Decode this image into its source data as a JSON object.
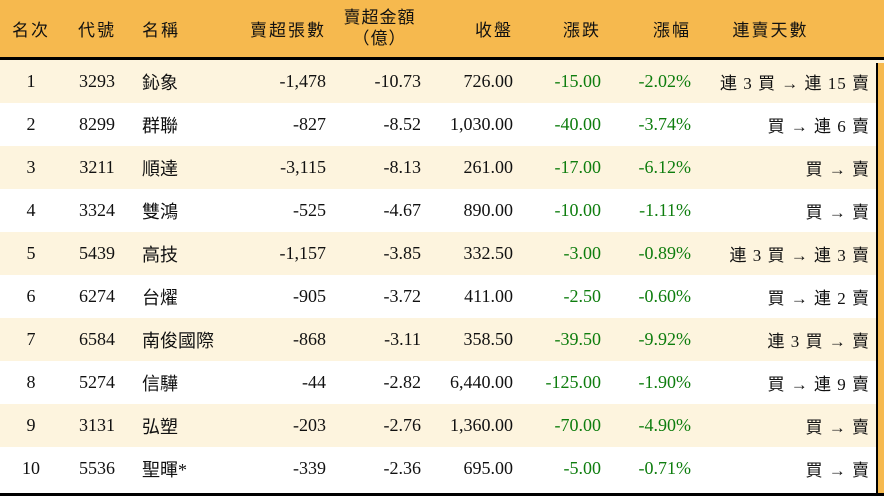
{
  "colors": {
    "header_bg": "#F6B94E",
    "row_stripe_bg": "#FDF4DE",
    "row_bg": "#FFFFFF",
    "down_green": "#0E7D0E",
    "text": "#111111",
    "divider": "#000000"
  },
  "ui": {
    "amount_header_line1": "賣超金額",
    "amount_header_line2": "（億）"
  },
  "chart_data": {
    "type": "table",
    "columns": [
      "名次",
      "代號",
      "名稱",
      "賣超張數",
      "賣超金額（億）",
      "收盤",
      "漲跌",
      "漲幅",
      "連賣天數"
    ],
    "rows": [
      [
        "1",
        "3293",
        "鈊象",
        "-1,478",
        "-10.73",
        "726.00",
        "-15.00",
        "-2.02%",
        "連 3 買 → 連 15 賣"
      ],
      [
        "2",
        "8299",
        "群聯",
        "-827",
        "-8.52",
        "1,030.00",
        "-40.00",
        "-3.74%",
        "買 → 連 6 賣"
      ],
      [
        "3",
        "3211",
        "順達",
        "-3,115",
        "-8.13",
        "261.00",
        "-17.00",
        "-6.12%",
        "買 → 賣"
      ],
      [
        "4",
        "3324",
        "雙鴻",
        "-525",
        "-4.67",
        "890.00",
        "-10.00",
        "-1.11%",
        "買 → 賣"
      ],
      [
        "5",
        "5439",
        "高技",
        "-1,157",
        "-3.85",
        "332.50",
        "-3.00",
        "-0.89%",
        "連 3 買 → 連 3 賣"
      ],
      [
        "6",
        "6274",
        "台燿",
        "-905",
        "-3.72",
        "411.00",
        "-2.50",
        "-0.60%",
        "買 → 連 2 賣"
      ],
      [
        "7",
        "6584",
        "南俊國際",
        "-868",
        "-3.11",
        "358.50",
        "-39.50",
        "-9.92%",
        "連 3 買 → 賣"
      ],
      [
        "8",
        "5274",
        "信驊",
        "-44",
        "-2.82",
        "6,440.00",
        "-125.00",
        "-1.90%",
        "買 → 連 9 賣"
      ],
      [
        "9",
        "3131",
        "弘塑",
        "-203",
        "-2.76",
        "1,360.00",
        "-70.00",
        "-4.90%",
        "買 → 賣"
      ],
      [
        "10",
        "5536",
        "聖暉*",
        "-339",
        "-2.36",
        "695.00",
        "-5.00",
        "-0.71%",
        "買 → 賣"
      ]
    ]
  }
}
